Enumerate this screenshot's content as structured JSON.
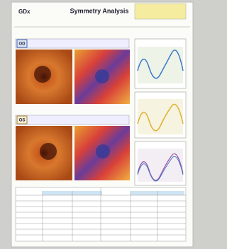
{
  "header": {
    "brand": "GDx",
    "title": "Symmetry Analysis"
  },
  "eyes": [
    {
      "label": "OD"
    },
    {
      "label": "OS"
    }
  ]
}
